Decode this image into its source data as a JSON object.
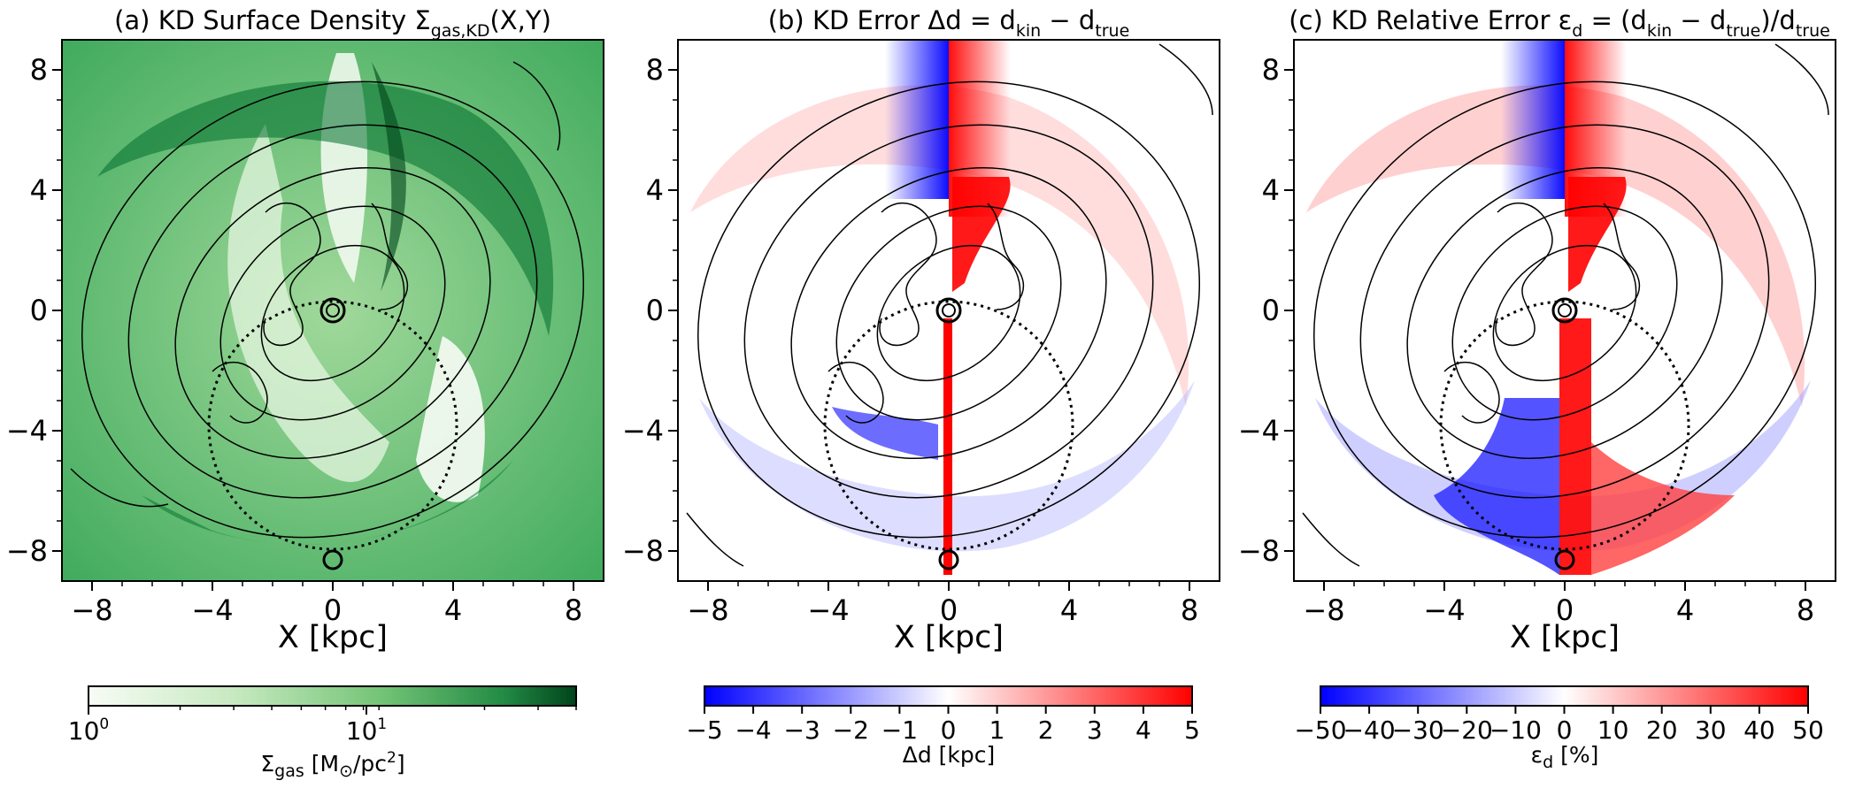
{
  "figure": {
    "colors": {
      "green_light": "#f7fcf5",
      "green_mid": "#74c476",
      "green_dark": "#00441b",
      "blue": "#0000ff",
      "white": "#ffffff",
      "red": "#ff0000",
      "contour": "#000000"
    }
  },
  "chart_data": [
    {
      "type": "heatmap",
      "title_prefix": "(a) KD Surface Density Σ",
      "title_sub": "gas,KD",
      "title_suffix": "(X,Y)",
      "xlabel": "X [kpc]",
      "ylabel": "",
      "xlim": [
        -9,
        9
      ],
      "ylim": [
        -9,
        9
      ],
      "x_ticks": [
        -8,
        -4,
        0,
        4,
        8
      ],
      "x_tick_labels": [
        "−8",
        "−4",
        "0",
        "4",
        "8"
      ],
      "y_ticks": [
        8,
        4,
        0,
        -4,
        -8
      ],
      "y_tick_labels": [
        "8",
        "4",
        "0",
        "−4",
        "−8"
      ],
      "colormap": "Greens",
      "colorbar": {
        "scale": "log",
        "range": [
          1,
          40
        ],
        "tick_values": [
          1,
          10
        ],
        "tick_base": "10",
        "tick_exponents": [
          "0",
          "1"
        ],
        "label_main": "Σ",
        "label_sub": "gas",
        "label_unit": "[M",
        "label_sun": "⊙",
        "label_unit2": "/pc",
        "label_exp": "2",
        "label_close": "]"
      },
      "markers": {
        "sun": [
          0,
          -8.3
        ],
        "galactic_center": [
          0,
          0
        ],
        "solar_circle_radius": 4.15,
        "solar_circle_center": [
          0,
          -4.15
        ]
      }
    },
    {
      "type": "heatmap",
      "title_prefix": "(b) KD Error Δd = d",
      "title_sub1": "kin",
      "title_mid": " − d",
      "title_sub2": "true",
      "xlabel": "X [kpc]",
      "xlim": [
        -9,
        9
      ],
      "ylim": [
        -9,
        9
      ],
      "x_ticks": [
        -8,
        -4,
        0,
        4,
        8
      ],
      "x_tick_labels": [
        "−8",
        "−4",
        "0",
        "4",
        "8"
      ],
      "y_ticks": [
        8,
        4,
        0,
        -4,
        -8
      ],
      "y_tick_labels": [
        "8",
        "4",
        "0",
        "−4",
        "−8"
      ],
      "colormap": "bwr",
      "colorbar": {
        "scale": "linear",
        "range": [
          -5,
          5
        ],
        "tick_values": [
          -5,
          -4,
          -3,
          -2,
          -1,
          0,
          1,
          2,
          3,
          4,
          5
        ],
        "tick_labels": [
          "−5",
          "−4",
          "−3",
          "−2",
          "−1",
          "0",
          "1",
          "2",
          "3",
          "4",
          "5"
        ],
        "label": "Δd [kpc]"
      }
    },
    {
      "type": "heatmap",
      "title_prefix": "(c) KD Relative Error ε",
      "title_sub0": "d",
      "title_eq": " = (d",
      "title_sub1": "kin",
      "title_mid": " − d",
      "title_sub2": "true",
      "title_div": ")/d",
      "title_sub3": "true",
      "xlabel": "X [kpc]",
      "xlim": [
        -9,
        9
      ],
      "ylim": [
        -9,
        9
      ],
      "x_ticks": [
        -8,
        -4,
        0,
        4,
        8
      ],
      "x_tick_labels": [
        "−8",
        "−4",
        "0",
        "4",
        "8"
      ],
      "y_ticks": [
        8,
        4,
        0,
        -4,
        -8
      ],
      "y_tick_labels": [
        "8",
        "4",
        "0",
        "−4",
        "−8"
      ],
      "colormap": "bwr",
      "colorbar": {
        "scale": "linear",
        "range": [
          -50,
          50
        ],
        "tick_values": [
          -50,
          -40,
          -30,
          -20,
          -10,
          0,
          10,
          20,
          30,
          40,
          50
        ],
        "tick_labels": [
          "−50",
          "−40",
          "−30",
          "−20",
          "−10",
          "0",
          "10",
          "20",
          "30",
          "40",
          "50"
        ],
        "label_main": "ε",
        "label_sub": "d",
        "label_unit": " [%]"
      }
    }
  ]
}
